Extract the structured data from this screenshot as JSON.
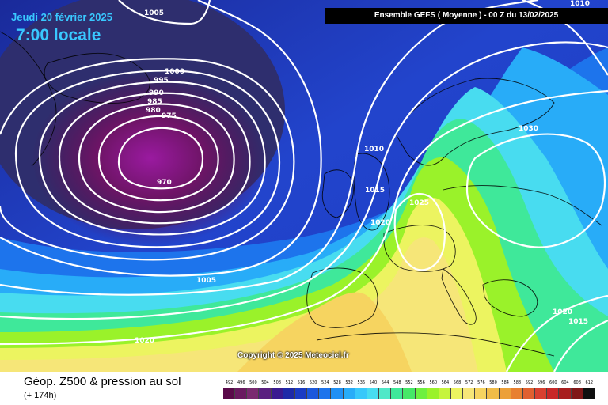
{
  "header": {
    "date": "Jeudi 20 février 2025",
    "time": "7:00 locale",
    "run_info": "Ensemble GEFS  ( Moyenne )  -  00 Z du 13/02/2025"
  },
  "map": {
    "copyright": "Copyright © 2025 Meteociel.fr",
    "isobar_labels": [
      "1005",
      "1000",
      "995",
      "990",
      "985",
      "980",
      "975",
      "970",
      "1010",
      "1015",
      "1025",
      "1020",
      "1030",
      "1010",
      "1020",
      "1015",
      "1005",
      "1020"
    ],
    "low_center_value": "970"
  },
  "footer": {
    "title": "Géop. Z500 & pression au sol",
    "subtitle": "(+ 174h)"
  },
  "legend": {
    "labels": [
      "492",
      "496",
      "500",
      "504",
      "508",
      "512",
      "516",
      "520",
      "524",
      "528",
      "532",
      "536",
      "540",
      "544",
      "548",
      "552",
      "556",
      "560",
      "564",
      "568",
      "572",
      "576",
      "580",
      "584",
      "588",
      "592",
      "596",
      "600",
      "604",
      "608",
      "612"
    ],
    "colors": [
      "#5a0a4a",
      "#6a1a60",
      "#7a2a70",
      "#5a1f80",
      "#3a1a90",
      "#1e2aa8",
      "#1b3cc4",
      "#1c58dc",
      "#1d74ec",
      "#2090f4",
      "#28acf8",
      "#38c8fa",
      "#48dcf0",
      "#50e8c8",
      "#3fe89a",
      "#46e868",
      "#6ef040",
      "#9af22a",
      "#c6f43c",
      "#ecf460",
      "#f6e678",
      "#f6d460",
      "#f0bc48",
      "#eca038",
      "#e88030",
      "#e06030",
      "#d84030",
      "#c82828",
      "#a81e1e",
      "#801818",
      "#101010"
    ]
  },
  "colors": {
    "accent_text": "#39c8ff",
    "isobar": "#ffffff",
    "coastline": "#000000"
  }
}
